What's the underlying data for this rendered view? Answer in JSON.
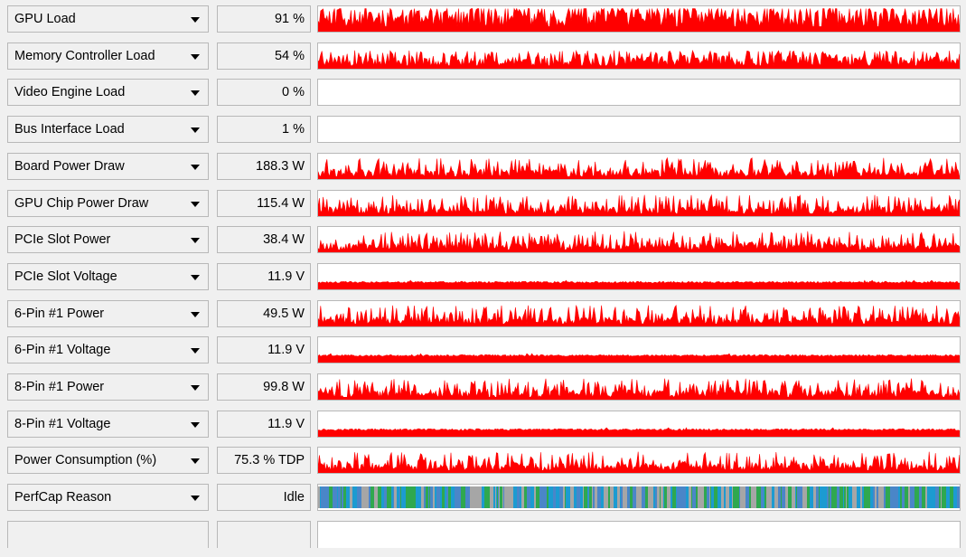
{
  "sensors": [
    {
      "name": "GPU Load",
      "value": "91 %",
      "graph": {
        "kind": "spiky",
        "level": 0.86,
        "variance": 0.18,
        "seed": 11
      }
    },
    {
      "name": "Memory Controller Load",
      "value": "54 %",
      "graph": {
        "kind": "spiky",
        "level": 0.52,
        "variance": 0.16,
        "seed": 23
      }
    },
    {
      "name": "Video Engine Load",
      "value": "0 %",
      "graph": {
        "kind": "empty"
      }
    },
    {
      "name": "Bus Interface Load",
      "value": "1 %",
      "graph": {
        "kind": "empty"
      }
    },
    {
      "name": "Board Power Draw",
      "value": "188.3 W",
      "graph": {
        "kind": "spiky",
        "level": 0.42,
        "variance": 0.3,
        "seed": 37
      }
    },
    {
      "name": "GPU Chip Power Draw",
      "value": "115.4 W",
      "graph": {
        "kind": "spiky",
        "level": 0.42,
        "variance": 0.3,
        "seed": 41
      }
    },
    {
      "name": "PCIe Slot Power",
      "value": "38.4 W",
      "graph": {
        "kind": "spiky",
        "level": 0.42,
        "variance": 0.3,
        "seed": 53
      }
    },
    {
      "name": "PCIe Slot Voltage",
      "value": "11.9 V",
      "graph": {
        "kind": "flat",
        "level": 0.3,
        "variance": 0.04,
        "seed": 61
      }
    },
    {
      "name": "6-Pin #1 Power",
      "value": "49.5 W",
      "graph": {
        "kind": "spiky",
        "level": 0.42,
        "variance": 0.3,
        "seed": 71
      }
    },
    {
      "name": "6-Pin #1 Voltage",
      "value": "11.9 V",
      "graph": {
        "kind": "flat",
        "level": 0.3,
        "variance": 0.04,
        "seed": 79
      }
    },
    {
      "name": "8-Pin #1 Power",
      "value": "99.8 W",
      "graph": {
        "kind": "spiky",
        "level": 0.42,
        "variance": 0.3,
        "seed": 83
      }
    },
    {
      "name": "8-Pin #1 Voltage",
      "value": "11.9 V",
      "graph": {
        "kind": "flat",
        "level": 0.3,
        "variance": 0.04,
        "seed": 97
      }
    },
    {
      "name": "Power Consumption (%)",
      "value": "75.3 % TDP",
      "graph": {
        "kind": "spiky",
        "level": 0.42,
        "variance": 0.3,
        "seed": 101
      }
    },
    {
      "name": "PerfCap Reason",
      "value": "Idle",
      "graph": {
        "kind": "perfcap",
        "seed": 113,
        "colors": [
          "#4a86c8",
          "#2fa84f",
          "#a6a6a6",
          "#1c9bd1"
        ]
      }
    }
  ],
  "graph_color": "#ff0000"
}
